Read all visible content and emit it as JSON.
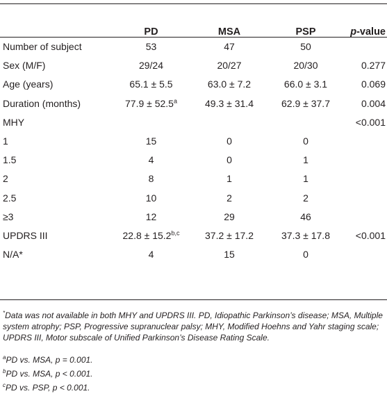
{
  "table": {
    "headers": {
      "col0": "",
      "pd": "PD",
      "msa": "MSA",
      "psp": "PSP",
      "pvalue_italic": "p",
      "pvalue_rest": "-value"
    },
    "rows": [
      {
        "label": "Number of subject",
        "pd": "53",
        "pd_sup": "",
        "msa": "47",
        "psp": "50",
        "p": ""
      },
      {
        "label": "Sex (M/F)",
        "pd": "29/24",
        "pd_sup": "",
        "msa": "20/27",
        "psp": "20/30",
        "p": "0.277"
      },
      {
        "label": "Age (years)",
        "pd": "65.1 ± 5.5",
        "pd_sup": "",
        "msa": "63.0 ± 7.2",
        "psp": "66.0 ± 3.1",
        "p": "0.069"
      },
      {
        "label": "Duration (months)",
        "pd": "77.9 ± 52.5",
        "pd_sup": "a",
        "msa": "49.3 ± 31.4",
        "psp": "62.9 ± 37.7",
        "p": "0.004"
      },
      {
        "label": "MHY",
        "pd": "",
        "pd_sup": "",
        "msa": "",
        "psp": "",
        "p": "<0.001"
      },
      {
        "label": "1",
        "pd": "15",
        "pd_sup": "",
        "msa": "0",
        "psp": "0",
        "p": ""
      },
      {
        "label": "1.5",
        "pd": "4",
        "pd_sup": "",
        "msa": "0",
        "psp": "1",
        "p": ""
      },
      {
        "label": "2",
        "pd": "8",
        "pd_sup": "",
        "msa": "1",
        "psp": "1",
        "p": ""
      },
      {
        "label": "2.5",
        "pd": "10",
        "pd_sup": "",
        "msa": "2",
        "psp": "2",
        "p": ""
      },
      {
        "label": "≥3",
        "pd": "12",
        "pd_sup": "",
        "msa": "29",
        "psp": "46",
        "p": ""
      },
      {
        "label": "UPDRS III",
        "pd": "22.8 ± 15.2",
        "pd_sup": "b,c",
        "msa": "37.2 ± 17.2",
        "psp": "37.3 ± 17.8",
        "p": "<0.001"
      },
      {
        "label": "N/A*",
        "pd": "4",
        "pd_sup": "",
        "msa": "15",
        "psp": "0",
        "p": ""
      }
    ]
  },
  "footnotes": {
    "star_mark": "*",
    "star_text": "Data was not available in both MHY and UPDRS III. PD, Idiopathic Parkinson’s disease; MSA, Multiple system atrophy; PSP, Progressive supranuclear palsy; MHY, Modified Hoehns and Yahr staging scale; UPDRS III, Motor subscale of Unified Parkinson’s Disease Rating Scale.",
    "a_mark": "a",
    "a_text": "PD vs. MSA, p = 0.001.",
    "b_mark": "b",
    "b_text": "PD vs. MSA, p < 0.001.",
    "c_mark": "c",
    "c_text": "PD vs. PSP, p < 0.001."
  }
}
